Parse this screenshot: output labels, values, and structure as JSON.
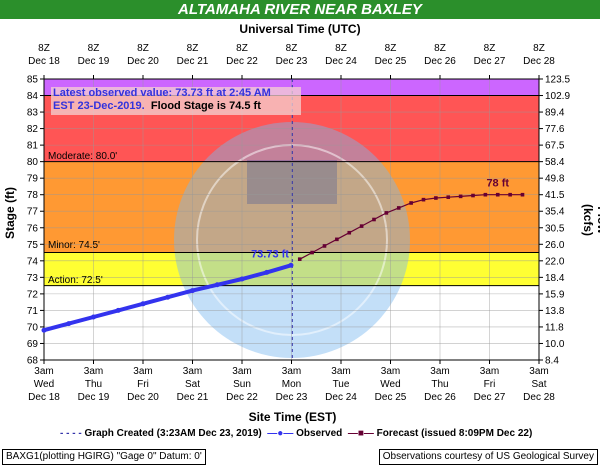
{
  "title": "ALTAMAHA RIVER NEAR BAXLEY",
  "top_axis_title": "Universal Time (UTC)",
  "bottom_axis_title": "Site Time (EST)",
  "left_axis_title": "Stage (ft)",
  "right_axis_title": "Flow (kcfs)",
  "note": {
    "line1": "Latest observed value: 73.73 ft at 2:45 AM",
    "line2_blue": "EST 23-Dec-2019.",
    "line2_black": "Flood Stage is 74.5 ft"
  },
  "legend": {
    "created": "Graph Created (3:23AM Dec 23, 2019)",
    "observed": "Observed",
    "forecast": "Forecast (issued 8:09PM Dec 22)"
  },
  "footer": {
    "left": "BAXG1(plotting HGIRG) \"Gage 0\" Datum: 0'",
    "right": "Observations courtesy of US Geological Survey"
  },
  "colors": {
    "title_bar": "#2b8f2b",
    "major_zone": "#cc66ff",
    "moderate_zone": "#ff5555",
    "minor_zone": "#ff9933",
    "action_zone": "#ffff33",
    "observed": "#3333ee",
    "forecast": "#660033",
    "flood_line": "#000000"
  },
  "chart_data": {
    "type": "line",
    "title": "ALTAMAHA RIVER NEAR BAXLEY",
    "xlabel": "Site Time (EST)",
    "ylabel": "Stage (ft)",
    "y2label": "Flow (kcfs)",
    "ylim": [
      68,
      85
    ],
    "yticks": [
      68,
      69,
      70,
      71,
      72,
      73,
      74,
      75,
      76,
      77,
      78,
      79,
      80,
      81,
      82,
      83,
      84,
      85
    ],
    "y2ticks": [
      "8.4",
      "10.0",
      "11.8",
      "13.8",
      "15.9",
      "18.4",
      "22.0",
      "26.0",
      "30.5",
      "35.4",
      "41.5",
      "49.8",
      "58.4",
      "67.5",
      "77.6",
      "89.4",
      "102.9",
      "123.5"
    ],
    "x_bottom_ticks": [
      {
        "time": "3am",
        "day": "Wed",
        "date": "Dec 18"
      },
      {
        "time": "3am",
        "day": "Thu",
        "date": "Dec 19"
      },
      {
        "time": "3am",
        "day": "Fri",
        "date": "Dec 20"
      },
      {
        "time": "3am",
        "day": "Sat",
        "date": "Dec 21"
      },
      {
        "time": "3am",
        "day": "Sun",
        "date": "Dec 22"
      },
      {
        "time": "3am",
        "day": "Mon",
        "date": "Dec 23"
      },
      {
        "time": "3am",
        "day": "Tue",
        "date": "Dec 24"
      },
      {
        "time": "3am",
        "day": "Wed",
        "date": "Dec 25"
      },
      {
        "time": "3am",
        "day": "Thu",
        "date": "Dec 26"
      },
      {
        "time": "3am",
        "day": "Fri",
        "date": "Dec 27"
      },
      {
        "time": "3am",
        "day": "Sat",
        "date": "Dec 28"
      }
    ],
    "x_top_ticks": [
      {
        "time": "8Z",
        "date": "Dec 18"
      },
      {
        "time": "8Z",
        "date": "Dec 19"
      },
      {
        "time": "8Z",
        "date": "Dec 20"
      },
      {
        "time": "8Z",
        "date": "Dec 21"
      },
      {
        "time": "8Z",
        "date": "Dec 22"
      },
      {
        "time": "8Z",
        "date": "Dec 23"
      },
      {
        "time": "8Z",
        "date": "Dec 24"
      },
      {
        "time": "8Z",
        "date": "Dec 25"
      },
      {
        "time": "8Z",
        "date": "Dec 26"
      },
      {
        "time": "8Z",
        "date": "Dec 27"
      },
      {
        "time": "8Z",
        "date": "Dec 28"
      }
    ],
    "xlim": [
      "2019-12-18 03:00",
      "2019-12-28 03:00"
    ],
    "thresholds": [
      {
        "name": "Major",
        "label": "",
        "value": 84.0
      },
      {
        "name": "Moderate",
        "label": "Moderate:  80.0'",
        "value": 80.0
      },
      {
        "name": "Minor",
        "label": "Minor:  74.5'",
        "value": 74.5
      },
      {
        "name": "Action",
        "label": "Action:  72.5'",
        "value": 72.5
      }
    ],
    "graph_created": "2019-12-23 03:23",
    "series": [
      {
        "name": "Observed",
        "x": [
          "2019-12-18 03:00",
          "2019-12-18 15:00",
          "2019-12-19 03:00",
          "2019-12-19 15:00",
          "2019-12-20 03:00",
          "2019-12-20 15:00",
          "2019-12-21 03:00",
          "2019-12-21 15:00",
          "2019-12-22 03:00",
          "2019-12-22 15:00",
          "2019-12-23 02:45"
        ],
        "y": [
          69.8,
          70.2,
          70.6,
          71.0,
          71.4,
          71.8,
          72.2,
          72.55,
          72.9,
          73.3,
          73.73
        ]
      },
      {
        "name": "Forecast",
        "x": [
          "2019-12-23 07:00",
          "2019-12-23 13:00",
          "2019-12-23 19:00",
          "2019-12-24 01:00",
          "2019-12-24 07:00",
          "2019-12-24 13:00",
          "2019-12-24 19:00",
          "2019-12-25 01:00",
          "2019-12-25 07:00",
          "2019-12-25 13:00",
          "2019-12-25 19:00",
          "2019-12-26 01:00",
          "2019-12-26 07:00",
          "2019-12-26 13:00",
          "2019-12-26 19:00",
          "2019-12-27 01:00",
          "2019-12-27 07:00",
          "2019-12-27 13:00",
          "2019-12-27 19:00"
        ],
        "y": [
          74.1,
          74.5,
          74.9,
          75.3,
          75.7,
          76.1,
          76.5,
          76.9,
          77.2,
          77.5,
          77.7,
          77.8,
          77.85,
          77.9,
          77.95,
          78.0,
          78.0,
          78.0,
          78.0
        ]
      }
    ],
    "annotations": [
      {
        "text": "73.73 ft",
        "series": "Observed",
        "x": "2019-12-23 02:45",
        "y": 73.73
      },
      {
        "text": "78 ft",
        "series": "Forecast",
        "x": "2019-12-27 07:00",
        "y": 78.0
      }
    ]
  }
}
